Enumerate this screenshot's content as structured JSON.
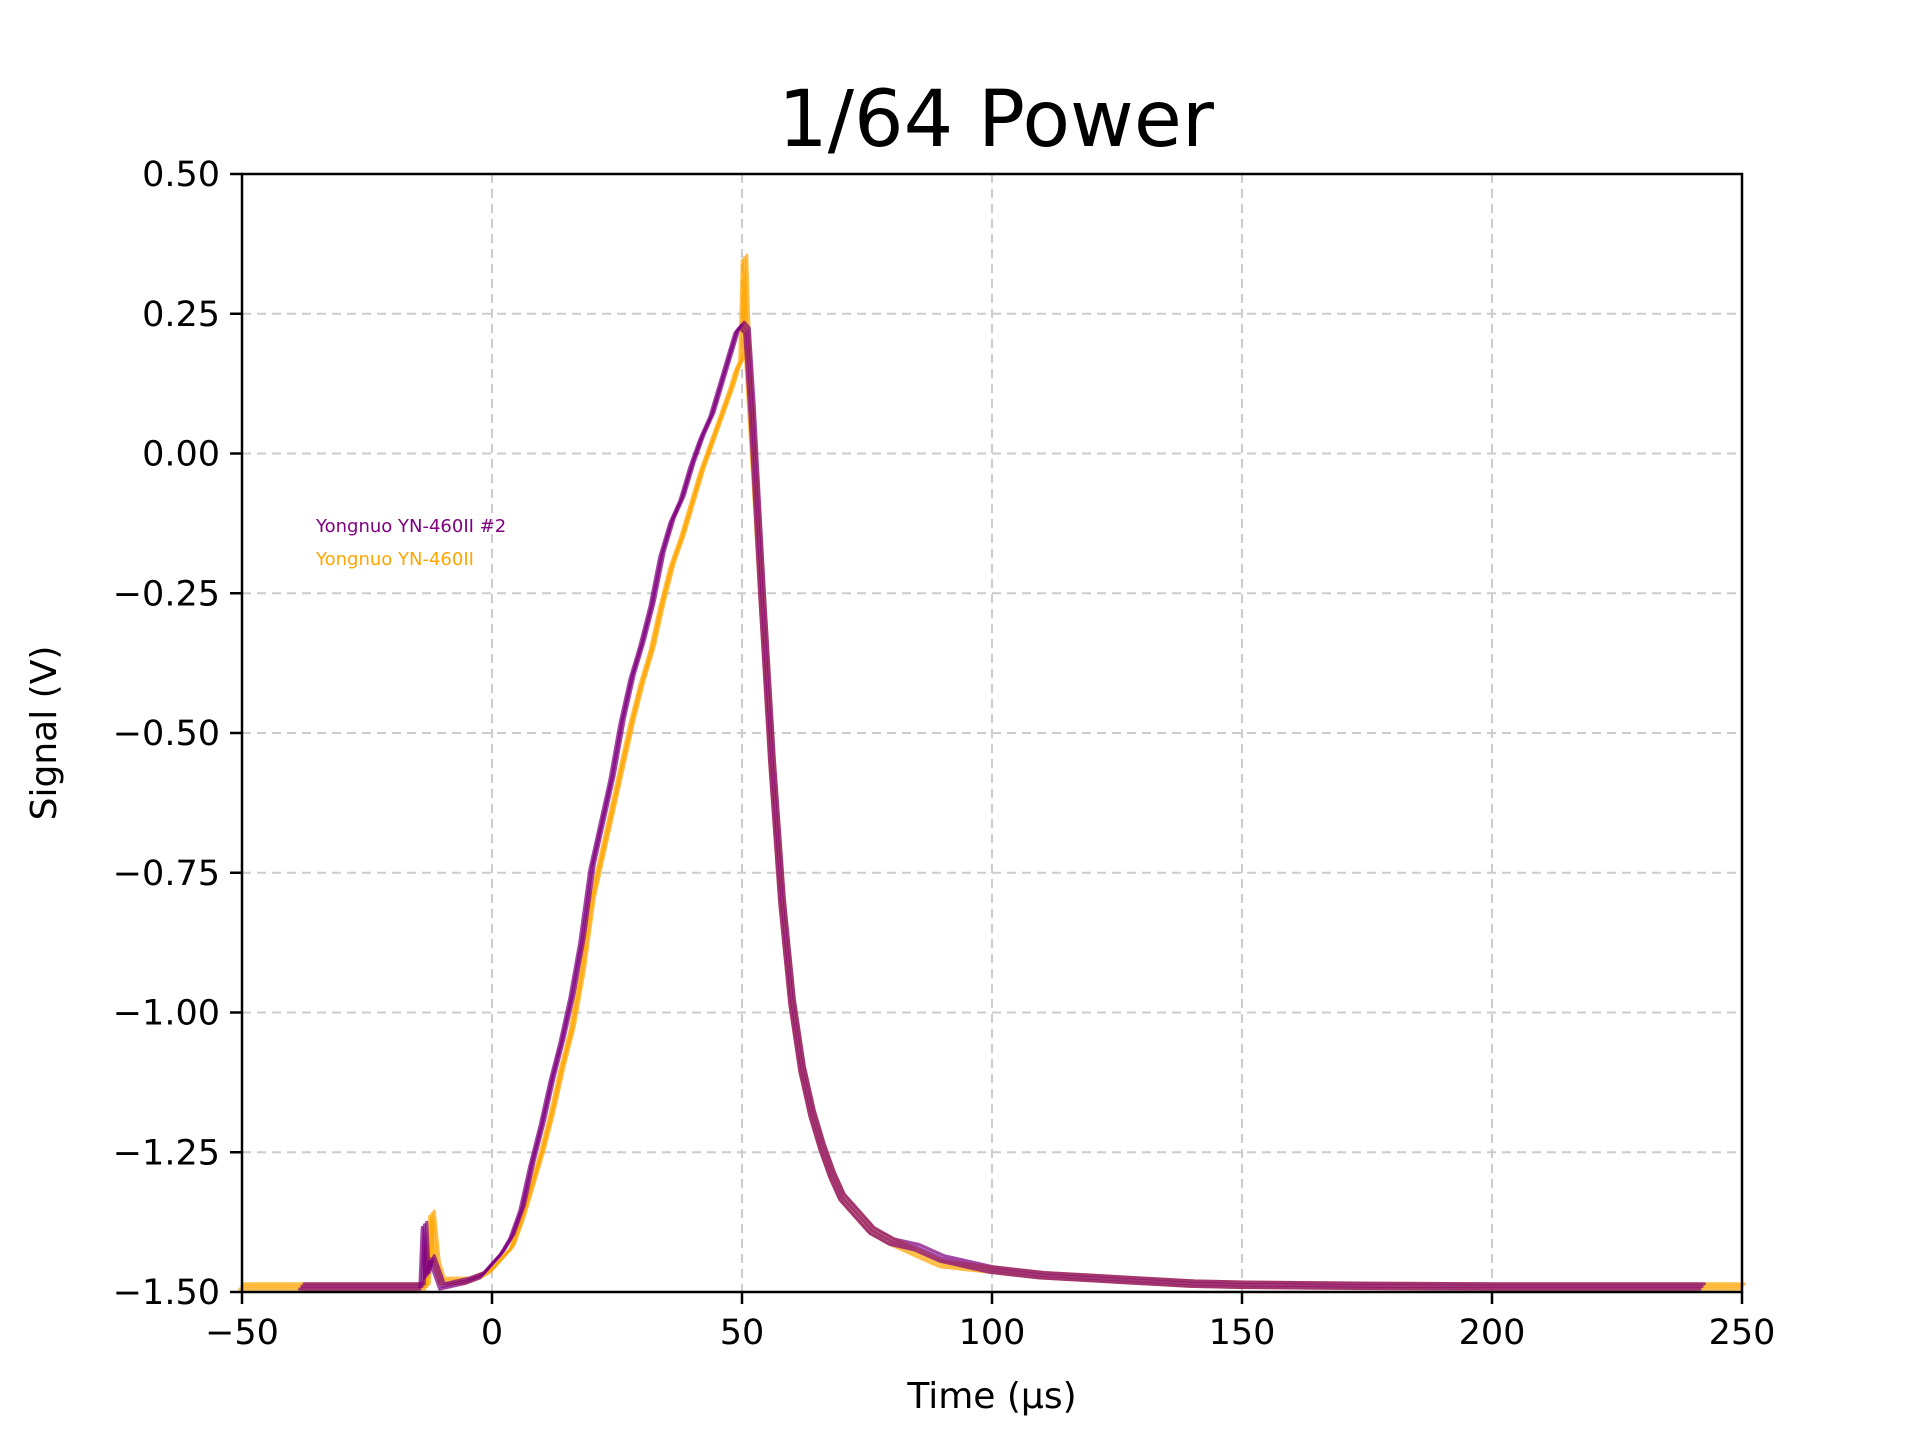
{
  "chart_data": {
    "type": "line",
    "title": "1/64 Power",
    "xlabel": "Time (µs)",
    "ylabel": "Signal (V)",
    "xlim": [
      -50,
      250
    ],
    "ylim": [
      -1.5,
      0.5
    ],
    "xticks": [
      -50,
      0,
      50,
      100,
      150,
      200,
      250
    ],
    "yticks": [
      -1.5,
      -1.25,
      -1.0,
      -0.75,
      -0.5,
      -0.25,
      0.0,
      0.25,
      0.5
    ],
    "xtick_labels": [
      "−50",
      "0",
      "50",
      "100",
      "150",
      "200",
      "250"
    ],
    "ytick_labels": [
      "−1.50",
      "−1.25",
      "−1.00",
      "−0.75",
      "−0.50",
      "−0.25",
      "0.00",
      "0.25",
      "0.50"
    ],
    "grid": true,
    "legend_position": "upper-left",
    "series": [
      {
        "name": "Yongnuo YN-460II #2",
        "color": "#800080",
        "x": [
          -38,
          -20,
          -14,
          -13.5,
          -13,
          -12,
          -10,
          -5,
          -2,
          0,
          2,
          4,
          6,
          8,
          10,
          12,
          14,
          16,
          18,
          20,
          22,
          24,
          26,
          28,
          30,
          32,
          34,
          36,
          38,
          40,
          42,
          44,
          46,
          48,
          49,
          50,
          51,
          52,
          54,
          56,
          58,
          60,
          62,
          64,
          66,
          68,
          70,
          72,
          74,
          76,
          78,
          80,
          85,
          90,
          95,
          100,
          110,
          120,
          130,
          140,
          150,
          175,
          200,
          225,
          242
        ],
        "y": [
          -1.49,
          -1.49,
          -1.49,
          -1.38,
          -1.47,
          -1.44,
          -1.49,
          -1.48,
          -1.47,
          -1.45,
          -1.43,
          -1.4,
          -1.35,
          -1.27,
          -1.2,
          -1.12,
          -1.05,
          -0.97,
          -0.87,
          -0.74,
          -0.66,
          -0.58,
          -0.48,
          -0.4,
          -0.34,
          -0.27,
          -0.18,
          -0.12,
          -0.08,
          -0.02,
          0.03,
          0.07,
          0.13,
          0.19,
          0.22,
          0.23,
          0.22,
          0.08,
          -0.25,
          -0.55,
          -0.8,
          -0.98,
          -1.1,
          -1.18,
          -1.24,
          -1.29,
          -1.33,
          -1.35,
          -1.37,
          -1.39,
          -1.4,
          -1.41,
          -1.42,
          -1.44,
          -1.45,
          -1.46,
          -1.47,
          -1.475,
          -1.48,
          -1.485,
          -1.487,
          -1.489,
          -1.49,
          -1.49,
          -1.49
        ]
      },
      {
        "name": "Yongnuo YN-460II",
        "color": "#FFA500",
        "x": [
          -50,
          -40,
          -20,
          -13,
          -12,
          -11,
          -10,
          -5,
          -2,
          0,
          2,
          4,
          6,
          8,
          10,
          12,
          14,
          16,
          18,
          20,
          22,
          24,
          26,
          28,
          30,
          32,
          34,
          36,
          38,
          40,
          42,
          44,
          46,
          48,
          49,
          50,
          50.5,
          51,
          52,
          54,
          56,
          58,
          60,
          62,
          64,
          66,
          68,
          70,
          72,
          74,
          76,
          78,
          80,
          85,
          90,
          95,
          100,
          110,
          120,
          130,
          140,
          150,
          175,
          200,
          225,
          250
        ],
        "y": [
          -1.49,
          -1.49,
          -1.49,
          -1.49,
          -1.36,
          -1.45,
          -1.48,
          -1.48,
          -1.47,
          -1.46,
          -1.44,
          -1.42,
          -1.37,
          -1.31,
          -1.25,
          -1.18,
          -1.1,
          -1.03,
          -0.93,
          -0.8,
          -0.72,
          -0.64,
          -0.56,
          -0.48,
          -0.41,
          -0.35,
          -0.27,
          -0.2,
          -0.15,
          -0.09,
          -0.03,
          0.02,
          0.07,
          0.12,
          0.15,
          0.17,
          0.35,
          0.2,
          0.05,
          -0.25,
          -0.55,
          -0.8,
          -0.98,
          -1.1,
          -1.18,
          -1.24,
          -1.29,
          -1.33,
          -1.35,
          -1.37,
          -1.39,
          -1.4,
          -1.41,
          -1.43,
          -1.45,
          -1.455,
          -1.46,
          -1.47,
          -1.475,
          -1.48,
          -1.485,
          -1.487,
          -1.489,
          -1.49,
          -1.49,
          -1.49
        ]
      }
    ]
  }
}
